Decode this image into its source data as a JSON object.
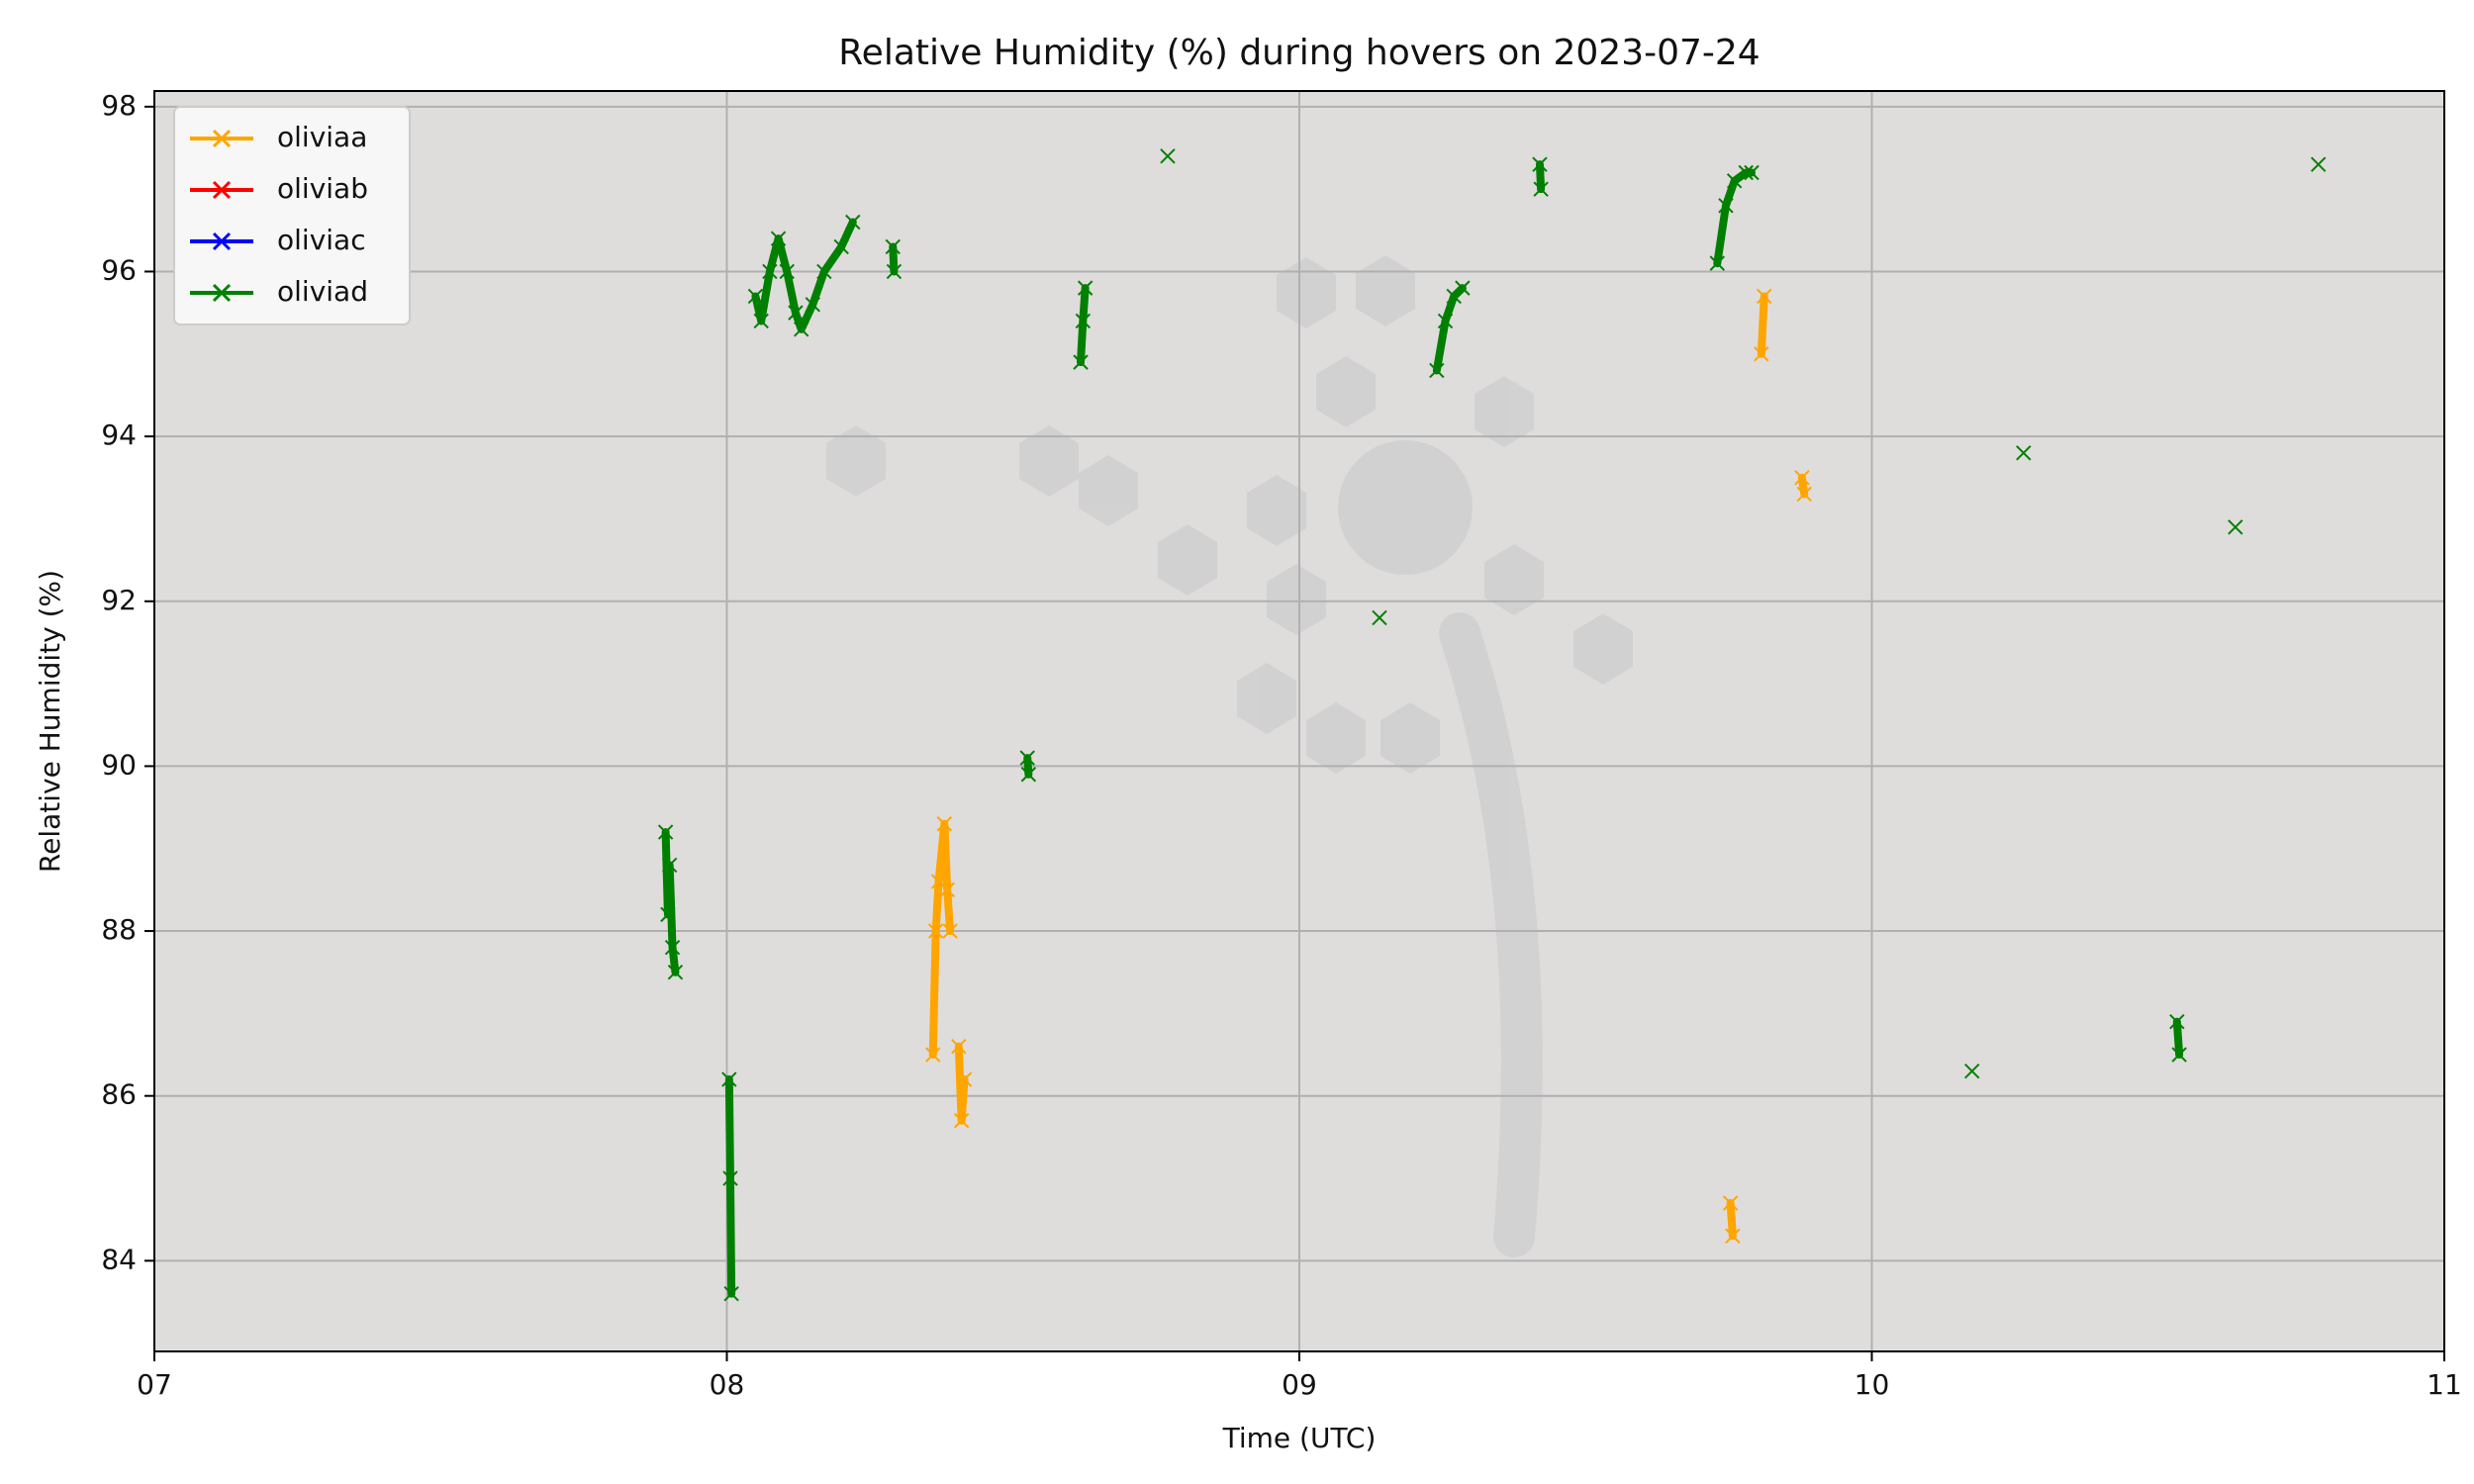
{
  "chart_data": {
    "type": "line",
    "title": "Relative Humidity (%) during hovers on 2023-07-24",
    "x_label": "Time (UTC)",
    "y_label": "Relative Humidity (%)",
    "xlim": [
      7,
      11
    ],
    "xticks": [
      {
        "value": 7,
        "label": "07"
      },
      {
        "value": 8,
        "label": "08"
      },
      {
        "value": 9,
        "label": "09"
      },
      {
        "value": 10,
        "label": "10"
      },
      {
        "value": 11,
        "label": "11"
      }
    ],
    "ylim": [
      82.9,
      98.19
    ],
    "yticks": [
      84,
      86,
      88,
      90,
      92,
      94,
      96,
      98
    ],
    "grid": true,
    "legend": "upper left",
    "marker": "x",
    "series": [
      {
        "name": "oliviaa",
        "color": "#ffa500",
        "x": [
          8.36,
          8.365,
          8.37,
          8.38,
          8.385,
          8.39,
          null,
          8.405,
          8.41,
          8.415,
          null,
          9.753,
          9.757,
          null,
          9.807,
          9.812,
          null,
          9.878,
          9.882
        ],
        "values": [
          86.5,
          88.0,
          88.6,
          89.3,
          88.5,
          88.0,
          null,
          86.6,
          85.7,
          86.2,
          null,
          84.7,
          84.3,
          null,
          95.0,
          95.7,
          null,
          93.5,
          93.3
        ]
      },
      {
        "name": "oliviab",
        "color": "#ff0000",
        "x": [],
        "values": []
      },
      {
        "name": "oliviac",
        "color": "#0000ff",
        "x": [],
        "values": []
      },
      {
        "name": "oliviad",
        "color": "#008000",
        "x": [
          7.893,
          7.897,
          7.9,
          7.905,
          7.91,
          null,
          8.004,
          8.006,
          8.008,
          null,
          8.05,
          8.06,
          8.075,
          8.09,
          8.105,
          8.12,
          8.13,
          8.15,
          8.17,
          8.2,
          8.22,
          null,
          8.29,
          8.292,
          null,
          8.525,
          8.527,
          null,
          8.618,
          8.622,
          8.626,
          null,
          8.77,
          null,
          9.14,
          null,
          9.24,
          9.255,
          9.27,
          9.285,
          null,
          9.42,
          9.422,
          null,
          9.73,
          9.745,
          9.76,
          9.78,
          9.79,
          null,
          10.175,
          null,
          10.265,
          null,
          10.533,
          10.537,
          null,
          10.635,
          null,
          10.78
        ],
        "values": [
          89.2,
          88.2,
          88.8,
          87.8,
          87.5,
          null,
          86.2,
          85.0,
          83.6,
          null,
          95.7,
          95.4,
          96.0,
          96.4,
          96.0,
          95.5,
          95.3,
          95.6,
          96.0,
          96.3,
          96.6,
          null,
          96.3,
          96.0,
          null,
          90.1,
          89.9,
          null,
          94.9,
          95.4,
          95.8,
          null,
          97.4,
          null,
          91.8,
          null,
          94.8,
          95.4,
          95.7,
          95.8,
          null,
          97.3,
          97.0,
          null,
          96.1,
          96.8,
          97.1,
          97.2,
          97.2,
          null,
          86.3,
          null,
          93.8,
          null,
          86.9,
          86.5,
          null,
          92.9,
          null,
          97.3
        ]
      }
    ]
  }
}
